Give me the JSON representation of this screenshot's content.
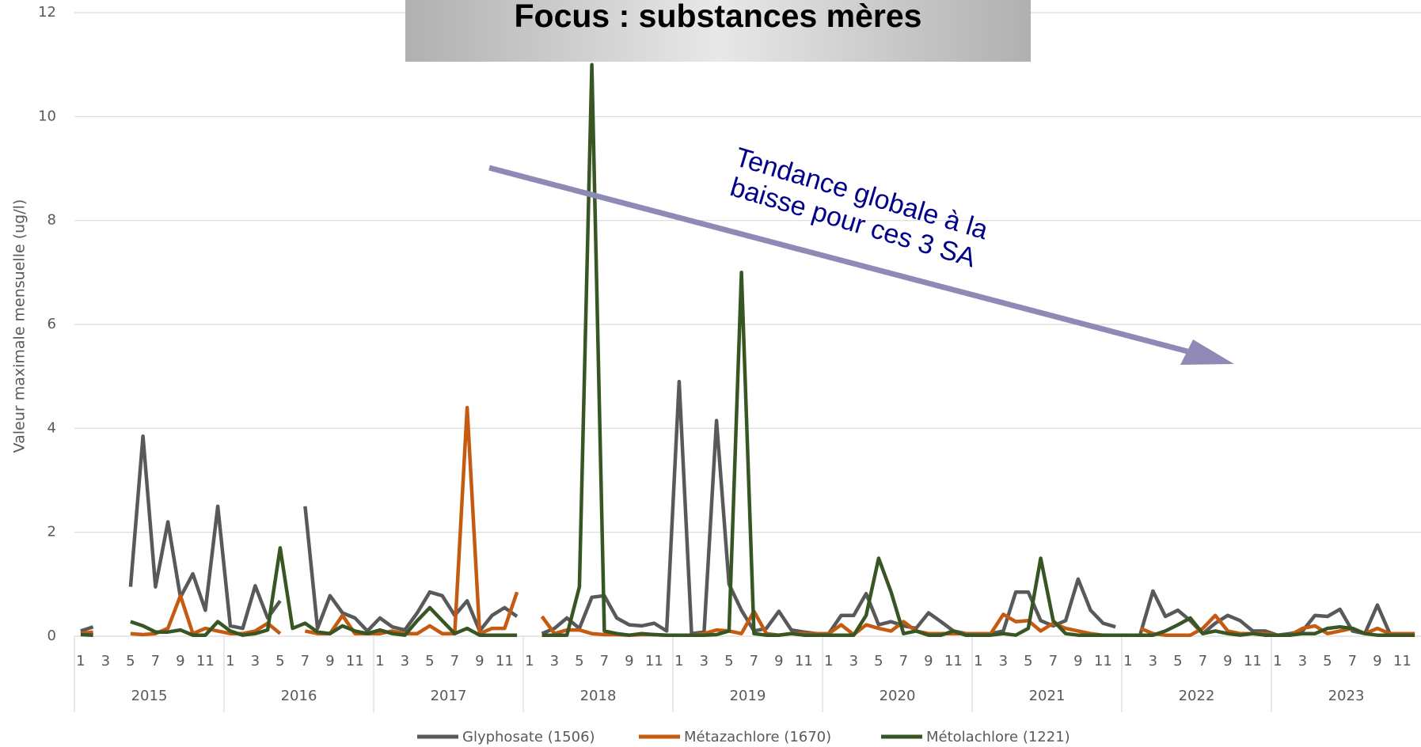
{
  "chart_data": {
    "type": "line",
    "title": "Focus : substances mères",
    "y_label": "Valeur maximale mensuelle (ug/l)",
    "annotation": [
      "Tendance globale à la",
      "baisse pour ces 3 SA"
    ],
    "ylim": [
      0,
      12
    ],
    "yticks": [
      0,
      2,
      4,
      6,
      8,
      10,
      12
    ],
    "grid": true,
    "legend": "bottom",
    "years": [
      "2015",
      "2016",
      "2017",
      "2018",
      "2019",
      "2020",
      "2021",
      "2022",
      "2023"
    ],
    "categories": [
      "1",
      null,
      "3",
      null,
      "5",
      null,
      "7",
      null,
      "9",
      null,
      "11",
      null,
      "1",
      null,
      "3",
      null,
      "5",
      null,
      "7",
      null,
      "9",
      null,
      "11",
      null,
      "1",
      null,
      "3",
      null,
      "5",
      null,
      "7",
      null,
      "9",
      null,
      "11",
      null,
      "1",
      null,
      "3",
      null,
      "5",
      null,
      "7",
      null,
      "9",
      null,
      "11",
      null,
      "1",
      null,
      "3",
      null,
      "5",
      null,
      "7",
      null,
      "9",
      null,
      "11",
      null,
      "1",
      null,
      "3",
      null,
      "5",
      null,
      "7",
      null,
      "9",
      null,
      "11",
      null,
      "1",
      null,
      "3",
      null,
      "5",
      null,
      "7",
      null,
      "9",
      null,
      "11",
      null,
      "1",
      null,
      "3",
      null,
      "5",
      null,
      "7",
      null,
      "9",
      null,
      "11",
      null,
      "1",
      null,
      "3",
      null,
      "5",
      null,
      "7",
      null,
      "9",
      null,
      "11",
      null
    ],
    "series": [
      {
        "name": "Glyphosate (1506)",
        "color": "#595959",
        "values": [
          0.1,
          0.18,
          null,
          null,
          0.95,
          3.85,
          0.95,
          2.2,
          0.75,
          1.2,
          0.5,
          2.5,
          0.2,
          0.15,
          0.97,
          0.35,
          0.68,
          null,
          2.5,
          0.15,
          0.78,
          0.45,
          0.35,
          0.1,
          0.35,
          0.18,
          0.12,
          0.45,
          0.85,
          0.78,
          0.4,
          0.68,
          0.1,
          0.4,
          0.55,
          0.38,
          null,
          0.05,
          0.15,
          0.35,
          0.15,
          0.75,
          0.78,
          0.35,
          0.22,
          0.2,
          0.25,
          0.1,
          4.9,
          0.05,
          0.08,
          4.15,
          1.0,
          0.5,
          0.1,
          0.15,
          0.48,
          0.12,
          0.08,
          0.05,
          0.05,
          0.4,
          0.4,
          0.82,
          0.22,
          0.28,
          0.2,
          0.15,
          0.45,
          0.28,
          0.1,
          0.05,
          0.05,
          0.05,
          0.1,
          0.85,
          0.85,
          0.3,
          0.2,
          0.3,
          1.1,
          0.5,
          0.25,
          0.18,
          null,
          0.05,
          0.87,
          0.38,
          0.5,
          0.3,
          0.05,
          0.25,
          0.4,
          0.3,
          0.1,
          0.1,
          0.02,
          0.05,
          0.1,
          0.4,
          0.38,
          0.52,
          0.1,
          0.05,
          0.6,
          0.05,
          0.05,
          0.05
        ]
      },
      {
        "name": "Métazachlore (1670)",
        "color": "#c55a11",
        "values": [
          0.05,
          0.08,
          null,
          null,
          0.05,
          0.03,
          0.05,
          0.15,
          0.78,
          0.05,
          0.15,
          0.1,
          0.05,
          0.05,
          0.1,
          0.25,
          0.05,
          null,
          0.1,
          0.05,
          0.05,
          0.4,
          0.05,
          0.05,
          0.05,
          0.1,
          0.05,
          0.05,
          0.2,
          0.05,
          0.05,
          4.4,
          0.05,
          0.15,
          0.15,
          0.85,
          null,
          0.38,
          0.05,
          0.12,
          0.12,
          0.05,
          0.03,
          0.03,
          0.02,
          0.03,
          0.03,
          0.02,
          0.02,
          0.02,
          0.05,
          0.12,
          0.1,
          0.05,
          0.48,
          0.05,
          0.02,
          0.05,
          0.05,
          0.05,
          0.05,
          0.22,
          0.03,
          0.22,
          0.15,
          0.1,
          0.28,
          0.1,
          0.05,
          0.05,
          0.05,
          0.05,
          0.05,
          0.05,
          0.42,
          0.28,
          0.3,
          0.1,
          0.25,
          0.15,
          0.1,
          0.05,
          0.02,
          0.02,
          null,
          0.15,
          0.05,
          0.02,
          0.02,
          0.02,
          0.15,
          0.4,
          0.1,
          0.05,
          0.05,
          0.05,
          0.02,
          0.02,
          0.15,
          0.2,
          0.05,
          0.1,
          0.15,
          0.05,
          0.15,
          0.05,
          0.05,
          0.05
        ]
      },
      {
        "name": "Métolachlore (1221)",
        "color": "#375623",
        "values": [
          0.03,
          0.02,
          null,
          null,
          0.28,
          0.2,
          0.08,
          0.08,
          0.12,
          0.02,
          0.02,
          0.28,
          0.1,
          0.02,
          0.05,
          0.12,
          1.7,
          0.15,
          0.25,
          0.08,
          0.05,
          0.2,
          0.1,
          0.05,
          0.12,
          0.05,
          0.02,
          0.3,
          0.55,
          0.3,
          0.05,
          0.15,
          0.02,
          0.02,
          0.02,
          0.02,
          null,
          0.02,
          0.02,
          0.02,
          0.95,
          11.0,
          0.1,
          0.05,
          0.02,
          0.05,
          0.03,
          0.02,
          0.02,
          0.02,
          0.02,
          0.03,
          0.1,
          7.0,
          0.05,
          0.02,
          0.02,
          0.05,
          0.02,
          0.02,
          0.02,
          0.02,
          0.02,
          0.4,
          1.5,
          0.85,
          0.05,
          0.1,
          0.02,
          0.02,
          0.1,
          0.02,
          0.02,
          0.02,
          0.05,
          0.02,
          0.15,
          1.5,
          0.3,
          0.05,
          0.02,
          0.02,
          0.02,
          0.02,
          0.02,
          0.02,
          0.02,
          0.1,
          0.22,
          0.35,
          0.05,
          0.1,
          0.05,
          0.02,
          0.05,
          0.02,
          0.02,
          0.02,
          0.05,
          0.05,
          0.15,
          0.18,
          0.15,
          0.05,
          0.02,
          0.02,
          0.02,
          0.02
        ]
      }
    ]
  }
}
